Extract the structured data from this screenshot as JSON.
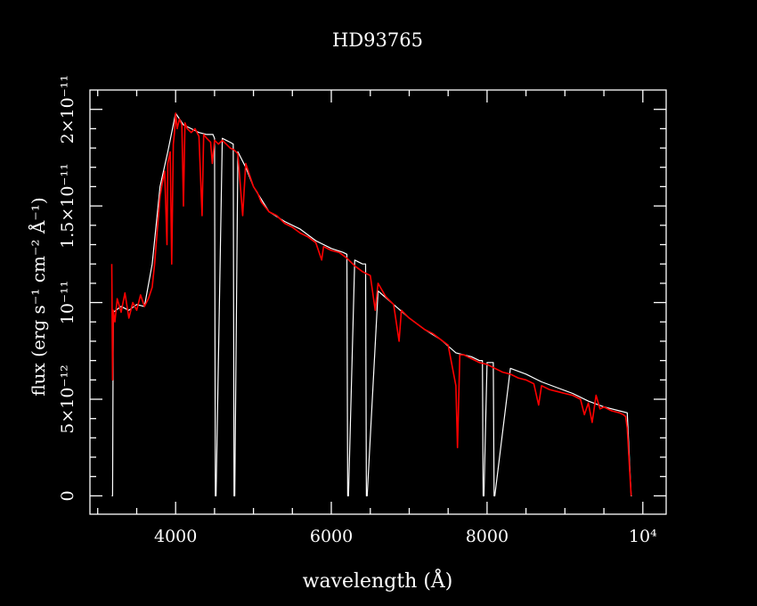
{
  "chart_data": {
    "type": "line",
    "title": "HD93765",
    "xlabel": "wavelength (Å)",
    "ylabel": "flux (erg s⁻¹ cm⁻² Å⁻¹)",
    "xlim": [
      2900,
      10300
    ],
    "ylim": [
      -9.5e-13,
      2.1e-11
    ],
    "x_ticks": [
      {
        "value": 4000,
        "label": "4000"
      },
      {
        "value": 6000,
        "label": "6000"
      },
      {
        "value": 8000,
        "label": "8000"
      },
      {
        "value": 10000,
        "label": "10⁴"
      }
    ],
    "y_ticks": [
      {
        "value": 0,
        "label": "0"
      },
      {
        "value": 5e-12,
        "label": "5×10⁻¹²"
      },
      {
        "value": 1e-11,
        "label": "10⁻¹¹"
      },
      {
        "value": 1.5e-11,
        "label": "1.5×10⁻¹¹"
      },
      {
        "value": 2e-11,
        "label": "2×10⁻¹¹"
      }
    ],
    "grid": false,
    "series": [
      {
        "color": "#ffffff",
        "x": [
          3180,
          3190,
          3200,
          3300,
          3400,
          3500,
          3600,
          3700,
          3800,
          3900,
          4000,
          4100,
          4200,
          4300,
          4400,
          4480,
          4500,
          4510,
          4520,
          4600,
          4700,
          4740,
          4750,
          4760,
          4800,
          4900,
          5000,
          5200,
          5400,
          5600,
          5800,
          6000,
          6150,
          6200,
          6210,
          6220,
          6300,
          6400,
          6420,
          6440,
          6450,
          6460,
          6600,
          6800,
          7000,
          7200,
          7400,
          7600,
          7800,
          7900,
          7940,
          7950,
          7960,
          8000,
          8050,
          8080,
          8090,
          8100,
          8300,
          8500,
          8700,
          8900,
          9100,
          9300,
          9500,
          9700,
          9800,
          9850,
          9860
        ],
        "y": [
          0,
          0,
          9.5e-12,
          9.8e-12,
          9.6e-12,
          9.9e-12,
          9.8e-12,
          1.2e-11,
          1.6e-11,
          1.78e-11,
          1.98e-11,
          1.92e-11,
          1.9e-11,
          1.88e-11,
          1.87e-11,
          1.87e-11,
          1.85e-11,
          0,
          0,
          1.85e-11,
          1.83e-11,
          1.82e-11,
          0,
          0,
          1.78e-11,
          1.7e-11,
          1.6e-11,
          1.47e-11,
          1.42e-11,
          1.38e-11,
          1.32e-11,
          1.28e-11,
          1.26e-11,
          1.25e-11,
          0,
          0,
          1.22e-11,
          1.2e-11,
          1.2e-11,
          1.2e-11,
          0,
          0,
          1.06e-11,
          9.9e-12,
          9.2e-12,
          8.6e-12,
          8.1e-12,
          7.4e-12,
          7.2e-12,
          7e-12,
          7e-12,
          0,
          0,
          6.9e-12,
          6.9e-12,
          6.9e-12,
          0,
          0,
          6.6e-12,
          6.3e-12,
          5.9e-12,
          5.6e-12,
          5.3e-12,
          4.9e-12,
          4.6e-12,
          4.4e-12,
          4.3e-12,
          0,
          0
        ]
      },
      {
        "color": "#ff0000",
        "x": [
          3180,
          3190,
          3200,
          3220,
          3250,
          3300,
          3350,
          3400,
          3450,
          3500,
          3550,
          3600,
          3650,
          3700,
          3730,
          3760,
          3780,
          3800,
          3830,
          3860,
          3889,
          3900,
          3930,
          3950,
          3970,
          3985,
          4000,
          4020,
          4050,
          4080,
          4101,
          4120,
          4150,
          4200,
          4250,
          4300,
          4340,
          4360,
          4400,
          4450,
          4471,
          4500,
          4550,
          4600,
          4650,
          4700,
          4750,
          4800,
          4861,
          4900,
          4950,
          5000,
          5050,
          5100,
          5200,
          5300,
          5400,
          5500,
          5600,
          5700,
          5800,
          5876,
          5900,
          6000,
          6100,
          6200,
          6300,
          6400,
          6500,
          6563,
          6600,
          6700,
          6800,
          6870,
          6900,
          7000,
          7100,
          7200,
          7300,
          7400,
          7500,
          7600,
          7620,
          7650,
          7700,
          7800,
          7900,
          8000,
          8100,
          8200,
          8300,
          8400,
          8500,
          8600,
          8662,
          8700,
          8800,
          8900,
          9000,
          9100,
          9200,
          9250,
          9300,
          9350,
          9400,
          9450,
          9500,
          9600,
          9700,
          9750,
          9780,
          9800,
          9850
        ],
        "y": [
          1.2e-11,
          6e-12,
          9.6e-12,
          9e-12,
          1.02e-11,
          9.5e-12,
          1.05e-11,
          9.2e-12,
          1e-11,
          9.6e-12,
          1.04e-11,
          9.8e-12,
          1.02e-11,
          1.08e-11,
          1.2e-11,
          1.35e-11,
          1.45e-11,
          1.55e-11,
          1.62e-11,
          1.68e-11,
          1.3e-11,
          1.72e-11,
          1.78e-11,
          1.2e-11,
          1.82e-11,
          1.88e-11,
          1.98e-11,
          1.9e-11,
          1.95e-11,
          1.92e-11,
          1.5e-11,
          1.93e-11,
          1.9e-11,
          1.88e-11,
          1.9e-11,
          1.86e-11,
          1.45e-11,
          1.87e-11,
          1.85e-11,
          1.83e-11,
          1.72e-11,
          1.84e-11,
          1.82e-11,
          1.84e-11,
          1.82e-11,
          1.8e-11,
          1.79e-11,
          1.77e-11,
          1.45e-11,
          1.72e-11,
          1.66e-11,
          1.6e-11,
          1.57e-11,
          1.52e-11,
          1.47e-11,
          1.45e-11,
          1.41e-11,
          1.39e-11,
          1.36e-11,
          1.34e-11,
          1.31e-11,
          1.22e-11,
          1.29e-11,
          1.27e-11,
          1.26e-11,
          1.23e-11,
          1.19e-11,
          1.16e-11,
          1.14e-11,
          9.6e-12,
          1.1e-11,
          1.03e-11,
          9.9e-12,
          8e-12,
          9.6e-12,
          9.2e-12,
          8.9e-12,
          8.6e-12,
          8.4e-12,
          8.1e-12,
          7.8e-12,
          5.7e-12,
          2.5e-12,
          7.3e-12,
          7.3e-12,
          7.1e-12,
          6.9e-12,
          6.8e-12,
          6.6e-12,
          6.4e-12,
          6.3e-12,
          6.1e-12,
          6e-12,
          5.8e-12,
          4.7e-12,
          5.7e-12,
          5.5e-12,
          5.4e-12,
          5.3e-12,
          5.2e-12,
          5e-12,
          4.2e-12,
          4.8e-12,
          3.8e-12,
          5.2e-12,
          4.5e-12,
          4.6e-12,
          4.4e-12,
          4.3e-12,
          4.2e-12,
          4.1e-12,
          3.5e-12,
          0
        ]
      }
    ]
  }
}
